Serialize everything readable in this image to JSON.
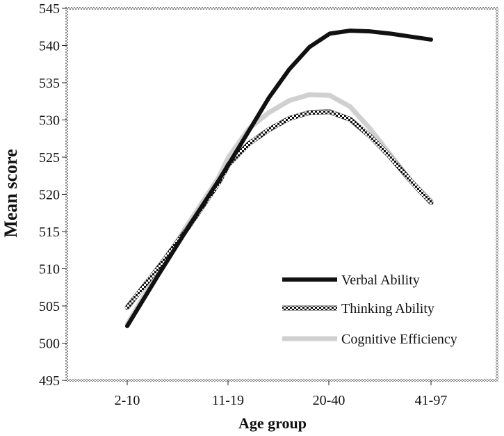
{
  "chart_data": {
    "type": "line",
    "categories": [
      "2-10",
      "11-19",
      "20-40",
      "41-97"
    ],
    "x": [
      "2-10",
      "11-19",
      "20-40",
      "41-97"
    ],
    "title": "",
    "xlabel": "Age group",
    "ylabel": "Mean score",
    "ylim": [
      495,
      545
    ],
    "yticks": [
      495,
      500,
      505,
      510,
      515,
      520,
      525,
      530,
      535,
      540,
      545
    ],
    "grid": false,
    "legend": {
      "position": "bottom-right"
    },
    "series": [
      {
        "name": "Verbal Ability",
        "color": "#111111",
        "style": "solid-black",
        "curve_x": [
          1.0,
          1.3,
          1.6,
          1.9,
          2.0,
          2.2,
          2.4,
          2.6,
          2.8,
          3.0,
          3.2,
          3.4,
          3.6,
          3.8,
          4.0
        ],
        "curve_y": [
          502.3,
          509.0,
          515.5,
          521.8,
          524.0,
          528.5,
          533.0,
          536.8,
          539.8,
          541.6,
          542.0,
          541.9,
          541.6,
          541.2,
          540.8
        ]
      },
      {
        "name": "Thinking Ability",
        "color": "#222222",
        "style": "checkered",
        "curve_x": [
          1.0,
          1.3,
          1.6,
          1.9,
          2.0,
          2.2,
          2.4,
          2.6,
          2.8,
          3.0,
          3.2,
          3.4,
          3.6,
          3.8,
          4.0
        ],
        "curve_y": [
          504.8,
          510.0,
          515.5,
          521.5,
          524.0,
          526.8,
          528.7,
          530.2,
          531.0,
          531.1,
          530.1,
          527.8,
          525.0,
          521.8,
          518.9
        ]
      },
      {
        "name": "Cognitive Efficiency",
        "color": "#d0d0d0",
        "style": "light-gray",
        "curve_x": [
          1.0,
          1.3,
          1.6,
          1.9,
          2.0,
          2.2,
          2.4,
          2.6,
          2.8,
          3.0,
          3.2,
          3.4,
          3.6,
          3.8,
          4.0
        ],
        "curve_y": [
          502.5,
          509.5,
          516.0,
          522.2,
          525.0,
          528.8,
          531.0,
          532.6,
          533.4,
          533.3,
          531.8,
          528.8,
          525.3,
          521.8,
          519.1
        ]
      }
    ]
  }
}
